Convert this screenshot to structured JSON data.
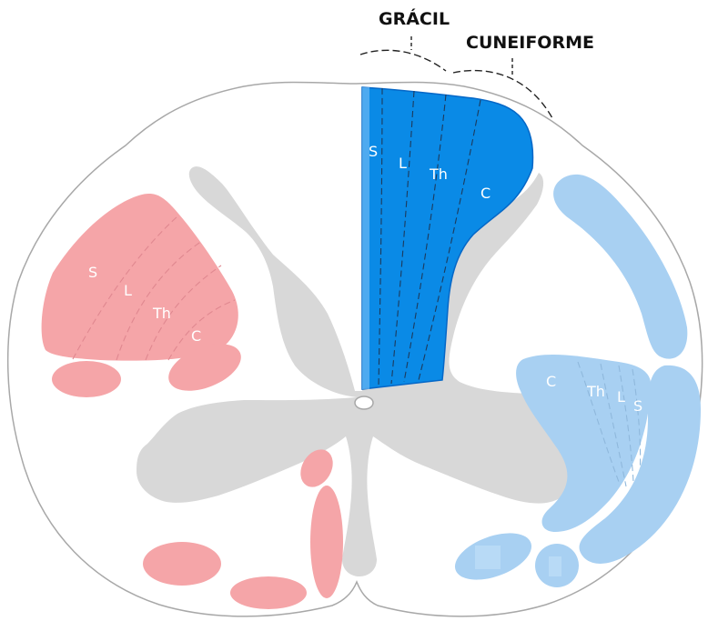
{
  "labels": {
    "gracil": "GRÁCIL",
    "cuneiforme": "CUNEIFORME"
  },
  "dorsal_column_laminae": [
    "S",
    "L",
    "Th",
    "C"
  ],
  "left_tract_laminae": [
    "S",
    "L",
    "Th",
    "C"
  ],
  "right_tract_laminae": [
    "C",
    "Th",
    "L",
    "S"
  ],
  "colors": {
    "outline": "#a8a8a8",
    "white_matter": "#ffffff",
    "gray_matter": "#d8d8d8",
    "dorsal_column": "#0a8ae6",
    "dorsal_column_dark": "#0467c7",
    "left_tracts": "#f5a5a8",
    "right_tracts": "#a8d0f2",
    "label_text": "#ffffff"
  }
}
